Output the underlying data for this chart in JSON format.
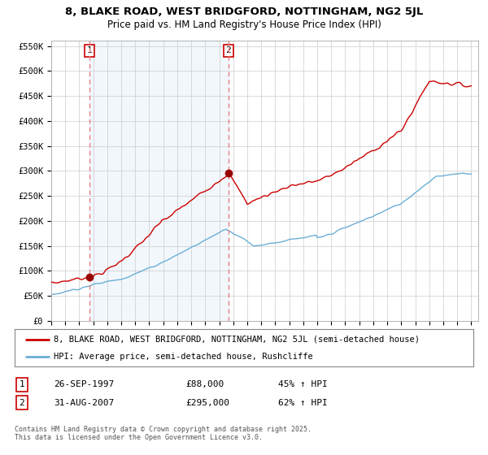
{
  "title": "8, BLAKE ROAD, WEST BRIDGFORD, NOTTINGHAM, NG2 5JL",
  "subtitle": "Price paid vs. HM Land Registry's House Price Index (HPI)",
  "legend_property": "8, BLAKE ROAD, WEST BRIDGFORD, NOTTINGHAM, NG2 5JL (semi-detached house)",
  "legend_hpi": "HPI: Average price, semi-detached house, Rushcliffe",
  "sale1_date": "26-SEP-1997",
  "sale1_price": "£88,000",
  "sale1_hpi": "45% ↑ HPI",
  "sale2_date": "31-AUG-2007",
  "sale2_price": "£295,000",
  "sale2_hpi": "62% ↑ HPI",
  "copyright": "Contains HM Land Registry data © Crown copyright and database right 2025.\nThis data is licensed under the Open Government Licence v3.0.",
  "property_color": "#cc0000",
  "hpi_color": "#6baed6",
  "sale_marker_color": "#990000",
  "dashed_line_color": "#e88080",
  "shade_color": "#ddeeff",
  "ylim": [
    0,
    560000
  ],
  "yticks": [
    0,
    50000,
    100000,
    150000,
    200000,
    250000,
    300000,
    350000,
    400000,
    450000,
    500000,
    550000
  ],
  "ytick_labels": [
    "£0",
    "£50K",
    "£100K",
    "£150K",
    "£200K",
    "£250K",
    "£300K",
    "£350K",
    "£400K",
    "£450K",
    "£500K",
    "£550K"
  ],
  "sale1_year": 1997.73,
  "sale1_value": 88000,
  "sale2_year": 2007.66,
  "sale2_value": 295000,
  "background_color": "#ffffff",
  "plot_bg_color": "#ffffff",
  "grid_color": "#cccccc",
  "xmin": 1995,
  "xmax": 2025.5
}
